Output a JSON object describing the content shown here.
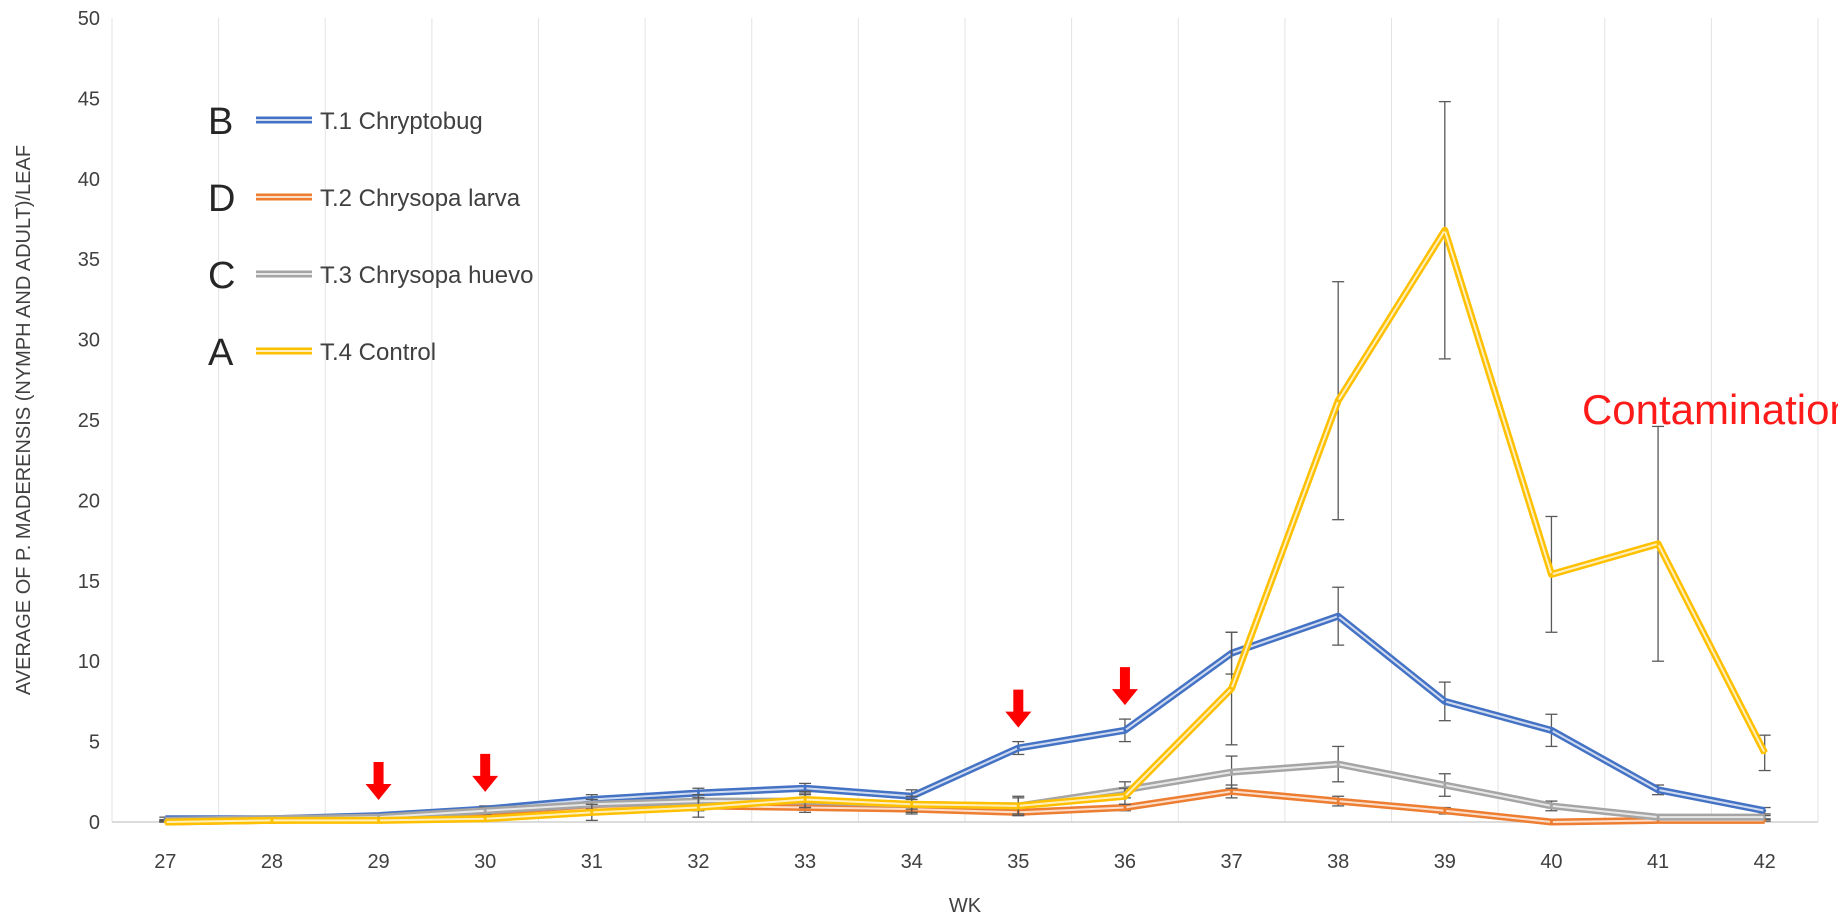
{
  "chart_data": {
    "type": "line",
    "title": "",
    "xlabel": "WK",
    "ylabel": "AVERAGE OF P. MADERENSIS (NYMPH AND ADULT)/LEAF",
    "x": [
      27,
      28,
      29,
      30,
      31,
      32,
      33,
      34,
      35,
      36,
      37,
      38,
      39,
      40,
      41,
      42
    ],
    "xticks": [
      "27",
      "28",
      "29",
      "30",
      "31",
      "32",
      "33",
      "34",
      "35",
      "36",
      "37",
      "38",
      "39",
      "40",
      "41",
      "42"
    ],
    "ylim": [
      0,
      50
    ],
    "yticks": [
      "0",
      "5",
      "10",
      "15",
      "20",
      "25",
      "30",
      "35",
      "40",
      "45",
      "50"
    ],
    "grid": "vertical",
    "legend_position": "top-left",
    "series": [
      {
        "name": "T.1 Chryptobug",
        "letter": "B",
        "color": "#4472c4",
        "values": [
          0.2,
          0.2,
          0.4,
          0.8,
          1.4,
          1.8,
          2.1,
          1.6,
          4.6,
          5.7,
          10.5,
          12.8,
          7.5,
          5.7,
          2.0,
          0.7
        ],
        "errors": [
          0.1,
          0.1,
          0.1,
          0.2,
          0.3,
          0.3,
          0.3,
          0.4,
          0.4,
          0.7,
          1.3,
          1.8,
          1.2,
          1.0,
          0.3,
          0.2
        ]
      },
      {
        "name": "T.2 Chrysopa larva",
        "letter": "D",
        "color": "#ed7d31",
        "values": [
          0.0,
          0.1,
          0.2,
          0.3,
          0.8,
          1.0,
          0.9,
          0.8,
          0.6,
          0.9,
          1.9,
          1.3,
          0.7,
          0.0,
          0.1,
          0.1
        ],
        "errors": [
          0.05,
          0.05,
          0.1,
          0.1,
          0.3,
          0.3,
          0.3,
          0.3,
          0.2,
          0.2,
          0.4,
          0.3,
          0.2,
          0.05,
          0.05,
          0.05
        ]
      },
      {
        "name": "T.3 Chrysopa huevo",
        "letter": "C",
        "color": "#a5a5a5",
        "values": [
          0.1,
          0.2,
          0.3,
          0.7,
          1.1,
          1.3,
          1.3,
          1.1,
          1.0,
          2.0,
          3.1,
          3.6,
          2.3,
          1.0,
          0.3,
          0.3
        ],
        "errors": [
          0.05,
          0.05,
          0.1,
          0.2,
          0.3,
          0.4,
          0.4,
          0.3,
          0.5,
          0.5,
          1.0,
          1.1,
          0.7,
          0.3,
          0.1,
          0.1
        ]
      },
      {
        "name": "T.4 Control",
        "letter": "A",
        "color": "#ffc000",
        "values": [
          0.0,
          0.1,
          0.1,
          0.2,
          0.6,
          0.9,
          1.4,
          1.1,
          1.0,
          1.6,
          8.3,
          26.2,
          36.8,
          15.4,
          17.3,
          4.3
        ],
        "errors": [
          0.05,
          0.05,
          0.05,
          0.1,
          0.5,
          0.6,
          0.5,
          0.5,
          0.6,
          0.5,
          3.5,
          7.4,
          8.0,
          3.6,
          7.3,
          1.1
        ]
      }
    ],
    "annotations": [
      {
        "text": "Contamination",
        "color": "#ff1a1a",
        "x": 41.5,
        "y": 25.5
      }
    ],
    "arrows": [
      {
        "x": 29,
        "color": "#ff0000"
      },
      {
        "x": 30,
        "color": "#ff0000"
      },
      {
        "x": 35,
        "color": "#ff0000"
      },
      {
        "x": 36,
        "color": "#ff0000"
      }
    ]
  }
}
